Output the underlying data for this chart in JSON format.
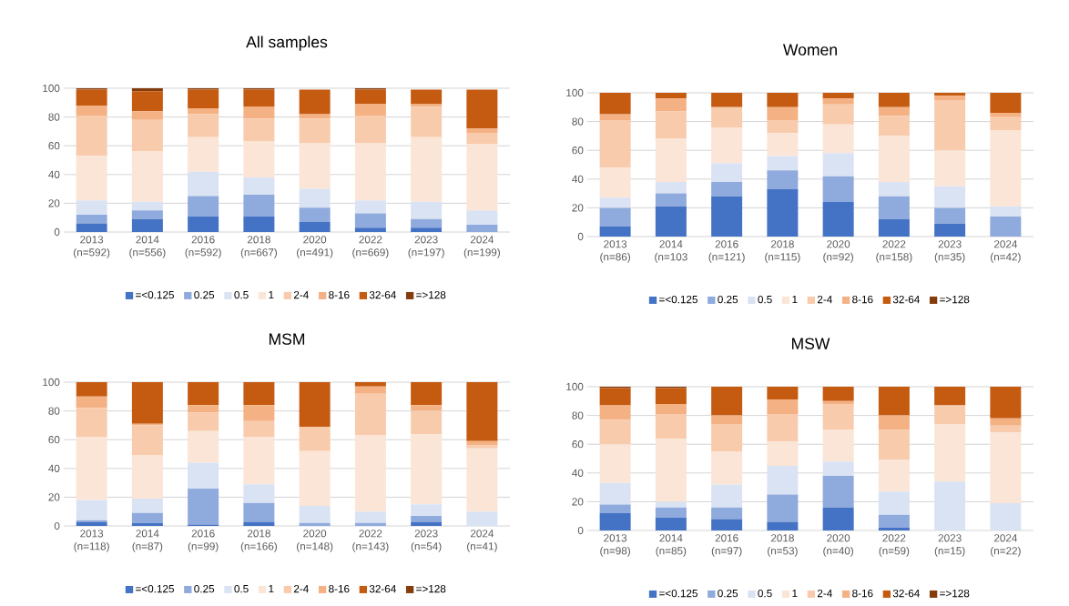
{
  "chart_data": [
    {
      "type": "bar",
      "stacked": true,
      "title": "All samples",
      "categories": [
        "2013 (n=592)",
        "2014 (n=556)",
        "2016 (n=592)",
        "2018 (n=667)",
        "2020 (n=491)",
        "2022 (n=669)",
        "2023 (n=197)",
        "2024 (n=199)"
      ],
      "ylim": [
        0,
        100
      ],
      "yticks": [
        0,
        20,
        40,
        60,
        80,
        100
      ],
      "grid": "y",
      "legend": "bottom",
      "series": [
        {
          "name": "=<0.125",
          "color": "#4472c4",
          "values": [
            6,
            9,
            11,
            11,
            7,
            3,
            3,
            0
          ]
        },
        {
          "name": "0.25",
          "color": "#8faadc",
          "values": [
            6,
            6,
            14,
            15,
            10,
            10,
            6,
            5
          ]
        },
        {
          "name": "0.5",
          "color": "#dae3f3",
          "values": [
            10,
            6,
            17,
            12,
            13,
            9,
            12,
            10
          ]
        },
        {
          "name": "1",
          "color": "#fbe5d6",
          "values": [
            31,
            35,
            24,
            25,
            32,
            40,
            45,
            46
          ]
        },
        {
          "name": "2-4",
          "color": "#f8cbad",
          "values": [
            28,
            22,
            16,
            16,
            17,
            19,
            21,
            8
          ]
        },
        {
          "name": "8-16",
          "color": "#f4b183",
          "values": [
            7,
            6,
            4,
            8,
            3,
            8,
            2,
            3
          ]
        },
        {
          "name": "32-64",
          "color": "#c55a11",
          "values": [
            11,
            14,
            13,
            12,
            17,
            10,
            10,
            27
          ]
        },
        {
          "name": "=>128",
          "color": "#843c0c",
          "values": [
            1,
            2,
            1,
            1,
            0,
            1,
            0,
            0
          ]
        }
      ]
    },
    {
      "type": "bar",
      "stacked": true,
      "title": "Women",
      "categories": [
        "2013 (n=86)",
        "2014 (n=103",
        "2016 (n=121)",
        "2018 (n=115)",
        "2020 (n=92)",
        "2022 (n=158)",
        "2023 (n=35)",
        "2024 (n=42)"
      ],
      "ylim": [
        0,
        100
      ],
      "yticks": [
        0,
        20,
        40,
        60,
        80,
        100
      ],
      "grid": "y",
      "legend": "bottom",
      "series": [
        {
          "name": "=<0.125",
          "color": "#4472c4",
          "values": [
            7,
            21,
            28,
            33,
            24,
            12,
            9,
            0
          ]
        },
        {
          "name": "0.25",
          "color": "#8faadc",
          "values": [
            13,
            9,
            10,
            13,
            18,
            16,
            11,
            14
          ]
        },
        {
          "name": "0.5",
          "color": "#dae3f3",
          "values": [
            7,
            8,
            13,
            10,
            16,
            10,
            15,
            7
          ]
        },
        {
          "name": "1",
          "color": "#fbe5d6",
          "values": [
            21,
            30,
            25,
            16,
            20,
            32,
            25,
            53
          ]
        },
        {
          "name": "2-4",
          "color": "#f8cbad",
          "values": [
            33,
            19,
            14,
            9,
            14,
            14,
            35,
            9
          ]
        },
        {
          "name": "8-16",
          "color": "#f4b183",
          "values": [
            4,
            9,
            0,
            9,
            4,
            6,
            3,
            3
          ]
        },
        {
          "name": "32-64",
          "color": "#c55a11",
          "values": [
            15,
            4,
            10,
            10,
            4,
            10,
            2,
            14
          ]
        },
        {
          "name": "=>128",
          "color": "#843c0c",
          "values": [
            0,
            0,
            0,
            0,
            0,
            0,
            0,
            0
          ]
        }
      ]
    },
    {
      "type": "bar",
      "stacked": true,
      "title": "MSM",
      "categories": [
        "2013 (n=118)",
        "2014 (n=87)",
        "2016 (n=99)",
        "2018 (n=166)",
        "2020 (n=148)",
        "2022 (n=143)",
        "2023 (n=54)",
        "2024 (n=41)"
      ],
      "ylim": [
        0,
        100
      ],
      "yticks": [
        0,
        20,
        40,
        60,
        80,
        100
      ],
      "grid": "y",
      "legend": "bottom",
      "series": [
        {
          "name": "=<0.125",
          "color": "#4472c4",
          "values": [
            3,
            2,
            1,
            3,
            0,
            0,
            3,
            0
          ]
        },
        {
          "name": "0.25",
          "color": "#8faadc",
          "values": [
            1,
            7,
            25,
            13,
            2,
            2,
            4,
            0
          ]
        },
        {
          "name": "0.5",
          "color": "#dae3f3",
          "values": [
            14,
            10,
            18,
            13,
            12,
            8,
            8,
            10
          ]
        },
        {
          "name": "1",
          "color": "#fbe5d6",
          "values": [
            44,
            30,
            22,
            33,
            38,
            53,
            49,
            44
          ]
        },
        {
          "name": "2-4",
          "color": "#f8cbad",
          "values": [
            20,
            21,
            13,
            11,
            17,
            29,
            16,
            2
          ]
        },
        {
          "name": "8-16",
          "color": "#f4b183",
          "values": [
            8,
            1,
            5,
            11,
            0,
            5,
            4,
            3
          ]
        },
        {
          "name": "32-64",
          "color": "#c55a11",
          "values": [
            10,
            29,
            16,
            16,
            31,
            3,
            16,
            41
          ]
        },
        {
          "name": "=>128",
          "color": "#843c0c",
          "values": [
            0,
            0,
            0,
            0,
            0,
            0,
            0,
            0
          ]
        }
      ]
    },
    {
      "type": "bar",
      "stacked": true,
      "title": "MSW",
      "categories": [
        "2013 (n=98)",
        "2014 (n=85)",
        "2016 (n=97)",
        "2018 (n=53)",
        "2020 (n=40)",
        "2022 (n=59)",
        "2023 (n=15)",
        "2024 (n=22)"
      ],
      "ylim": [
        0,
        100
      ],
      "yticks": [
        0,
        20,
        40,
        60,
        80,
        100
      ],
      "grid": "y",
      "legend": "bottom",
      "series": [
        {
          "name": "=<0.125",
          "color": "#4472c4",
          "values": [
            12,
            9,
            8,
            6,
            16,
            2,
            0,
            0
          ]
        },
        {
          "name": "0.25",
          "color": "#8faadc",
          "values": [
            6,
            7,
            8,
            19,
            22,
            9,
            0,
            0
          ]
        },
        {
          "name": "0.5",
          "color": "#dae3f3",
          "values": [
            15,
            4,
            16,
            20,
            10,
            16,
            34,
            19
          ]
        },
        {
          "name": "1",
          "color": "#fbe5d6",
          "values": [
            27,
            44,
            23,
            17,
            22,
            22,
            40,
            49
          ]
        },
        {
          "name": "2-4",
          "color": "#f8cbad",
          "values": [
            17,
            17,
            19,
            19,
            18,
            21,
            13,
            5
          ]
        },
        {
          "name": "8-16",
          "color": "#f4b183",
          "values": [
            10,
            7,
            6,
            10,
            2,
            10,
            0,
            5
          ]
        },
        {
          "name": "32-64",
          "color": "#c55a11",
          "values": [
            12,
            11,
            20,
            9,
            10,
            20,
            13,
            22
          ]
        },
        {
          "name": "=>128",
          "color": "#843c0c",
          "values": [
            1,
            1,
            0,
            0,
            0,
            0,
            0,
            0
          ]
        }
      ]
    }
  ]
}
